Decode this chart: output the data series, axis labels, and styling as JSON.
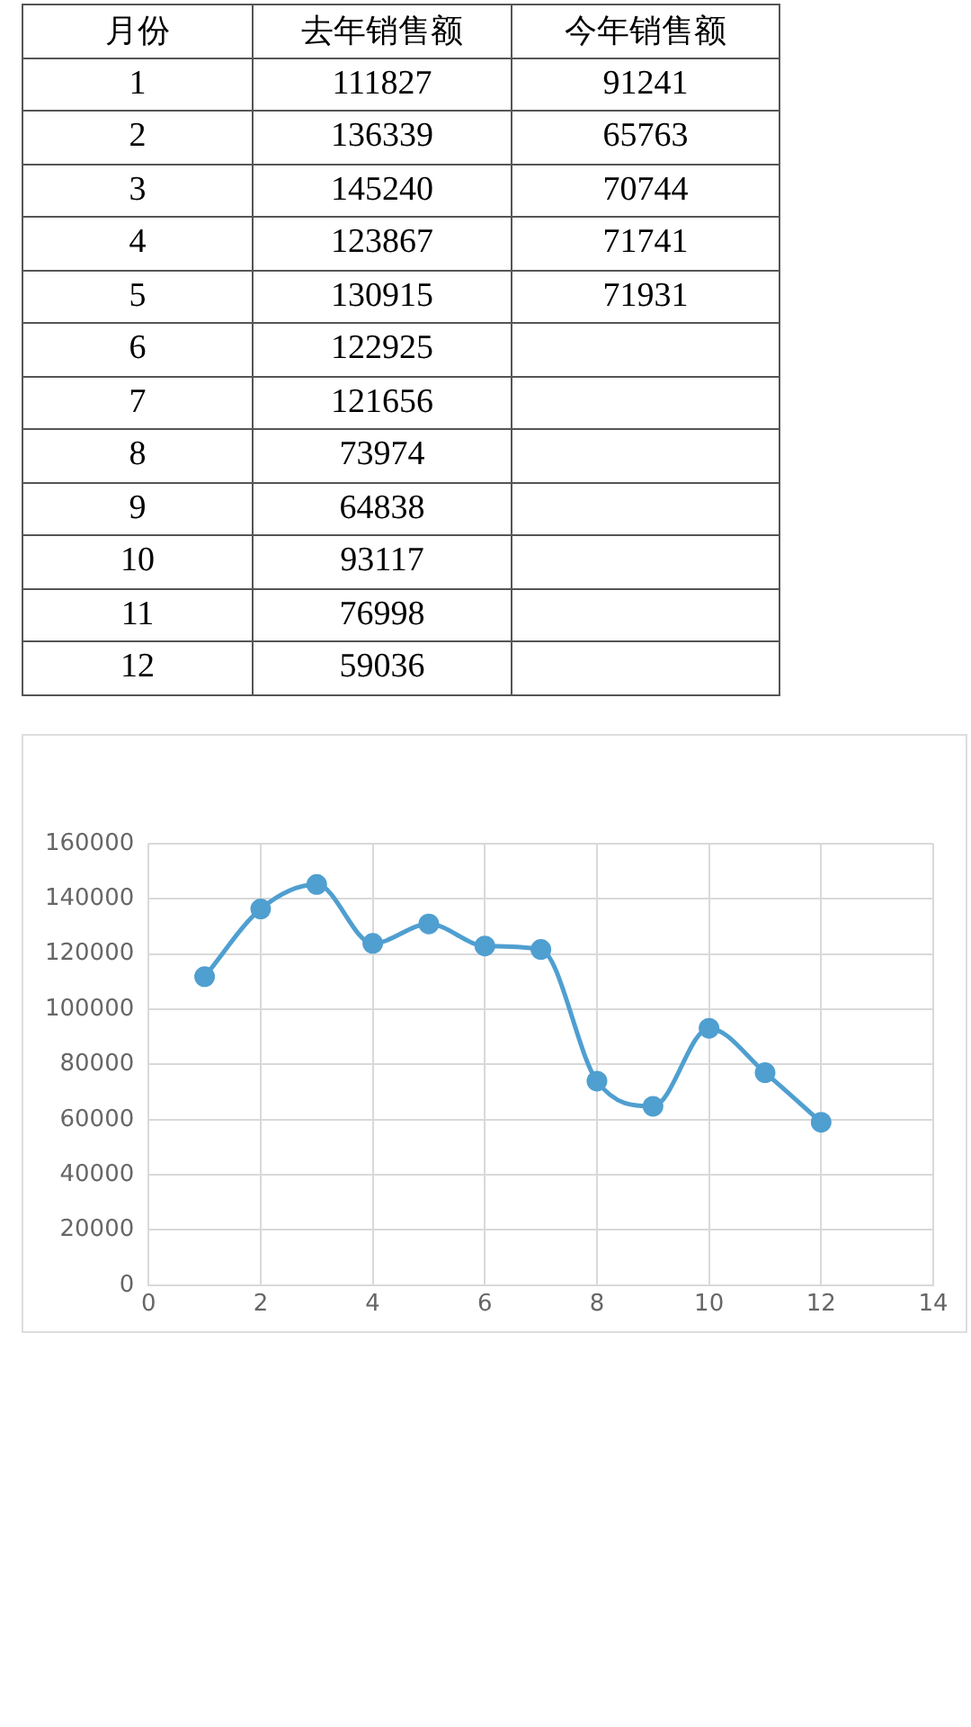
{
  "chart_data": [
    {
      "type": "heatmap",
      "ylabel": "月份",
      "categories": [
        "去年销售额",
        "今年销售额"
      ],
      "y_categories": [
        "1",
        "2",
        "3",
        "4",
        "5",
        "6",
        "7",
        "8",
        "9",
        "10",
        "11",
        "12"
      ],
      "cells": [
        [
          111827,
          91241
        ],
        [
          136339,
          65763
        ],
        [
          145240,
          70744
        ],
        [
          123867,
          71741
        ],
        [
          130915,
          71931
        ],
        [
          122925,
          null
        ],
        [
          121656,
          null
        ],
        [
          73974,
          null
        ],
        [
          64838,
          null
        ],
        [
          93117,
          null
        ],
        [
          76998,
          null
        ],
        [
          59036,
          null
        ]
      ],
      "data_labels": true
    },
    {
      "type": "line",
      "x": [
        1,
        2,
        3,
        4,
        5,
        6,
        7,
        8,
        9,
        10,
        11,
        12
      ],
      "series": [
        {
          "color": "#4f9fd0",
          "values": [
            111827,
            136339,
            145240,
            123867,
            130915,
            122925,
            121656,
            73974,
            64838,
            93117,
            76998,
            59036
          ]
        }
      ],
      "xlim": [
        0,
        14
      ],
      "xticks": [
        0,
        2,
        4,
        6,
        8,
        10,
        12,
        14
      ],
      "ylim": [
        0,
        160000
      ],
      "yticks": [
        0,
        20000,
        40000,
        60000,
        80000,
        100000,
        120000,
        140000,
        160000
      ],
      "grid": true,
      "marker": "circle",
      "legend": false
    }
  ]
}
